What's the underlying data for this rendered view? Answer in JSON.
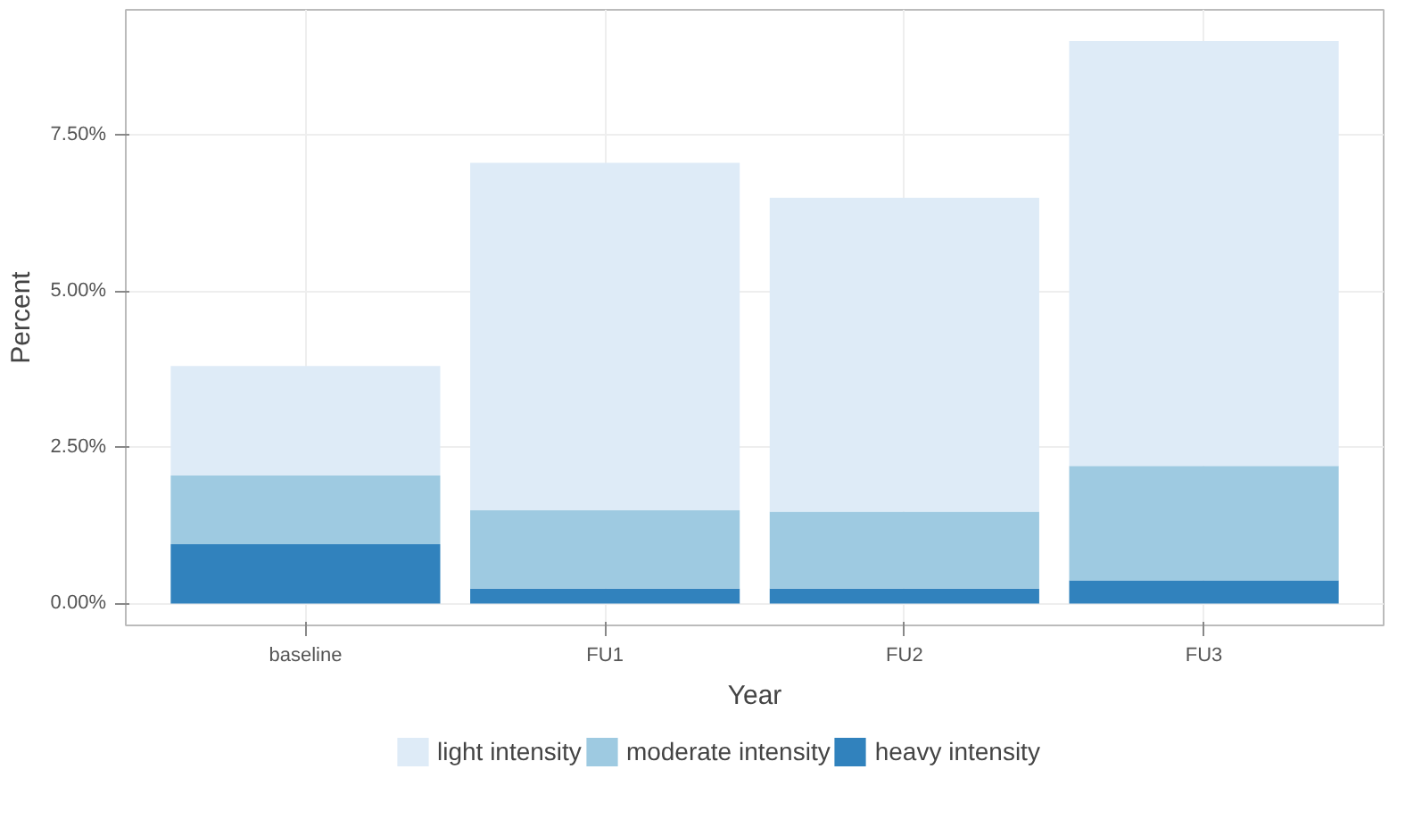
{
  "chart_data": {
    "type": "bar",
    "xlabel": "Year",
    "ylabel": "Percent",
    "categories": [
      "baseline",
      "FU1",
      "FU2",
      "FU3"
    ],
    "stacked": true,
    "series": [
      {
        "name": "heavy intensity",
        "color": "#3182bd",
        "values": [
          0.95,
          0.24,
          0.24,
          0.37
        ]
      },
      {
        "name": "moderate intensity",
        "color": "#9ecae1",
        "values": [
          1.1,
          1.25,
          1.23,
          1.83
        ]
      },
      {
        "name": "light intensity",
        "color": "#deebf7",
        "values": [
          1.75,
          5.56,
          5.02,
          6.8
        ]
      }
    ],
    "ylim": [
      -0.35,
      9.5
    ],
    "yticks": [
      {
        "value": 0,
        "label": "0.00%"
      },
      {
        "value": 2.5,
        "label": "2.50%"
      },
      {
        "value": 5,
        "label": "5.00%"
      },
      {
        "value": 7.5,
        "label": "7.50%"
      }
    ],
    "grid": true,
    "legend": "bottom"
  }
}
